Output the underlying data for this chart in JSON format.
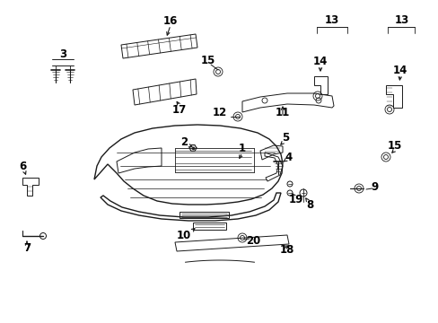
{
  "bg_color": "#ffffff",
  "line_color": "#1a1a1a",
  "fig_width": 4.89,
  "fig_height": 3.6,
  "dpi": 100,
  "label_fontsize": 8.5,
  "label_color": "#000000"
}
